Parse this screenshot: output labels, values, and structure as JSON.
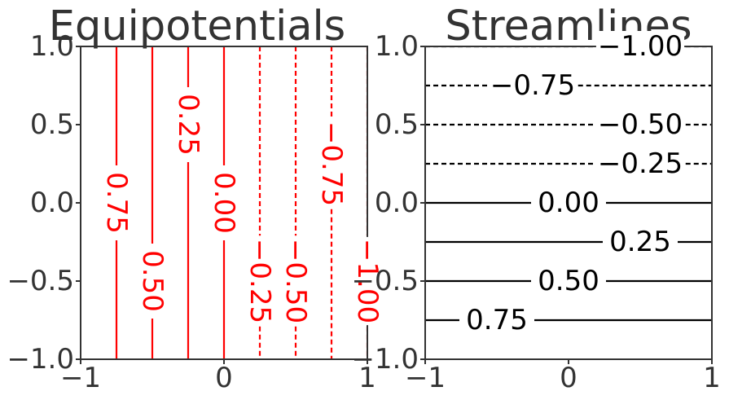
{
  "chart_data": [
    {
      "type": "contour",
      "title": "Equipotentials",
      "xlim": [
        -1,
        1
      ],
      "ylim": [
        -1,
        1
      ],
      "x_tick_labels": [
        "−1",
        "0",
        "1"
      ],
      "y_tick_labels": [
        "1.0",
        "0.5",
        "0.0",
        "−0.5",
        "−1.0"
      ],
      "line_color": "#ff0000",
      "orientation": "vertical",
      "grid": false,
      "contours": [
        {
          "level": 0.75,
          "x": -0.75,
          "style": "solid",
          "label": "0.75",
          "label_y": 0.0
        },
        {
          "level": 0.5,
          "x": -0.5,
          "style": "solid",
          "label": "0.50",
          "label_y": -0.5
        },
        {
          "level": 0.25,
          "x": -0.25,
          "style": "solid",
          "label": "0.25",
          "label_y": 0.5
        },
        {
          "level": 0.0,
          "x": 0.0,
          "style": "solid",
          "label": "0.00",
          "label_y": 0.0
        },
        {
          "level": -0.25,
          "x": 0.25,
          "style": "dashed",
          "label": "−0.25",
          "label_y": -0.5
        },
        {
          "level": -0.5,
          "x": 0.5,
          "style": "dashed",
          "label": "−0.50",
          "label_y": -0.5
        },
        {
          "level": -0.75,
          "x": 0.75,
          "style": "dashed",
          "label": "−0.75",
          "label_y": 0.25
        },
        {
          "level": -1.0,
          "x": 1.0,
          "style": "dashed",
          "label": "−1.00",
          "label_y": -0.5
        }
      ]
    },
    {
      "type": "contour",
      "title": "Streamlines",
      "xlim": [
        -1,
        1
      ],
      "ylim": [
        -1,
        1
      ],
      "x_tick_labels": [
        "−1",
        "0",
        "1"
      ],
      "y_tick_labels": [
        "1.0",
        "0.5",
        "0.0",
        "−0.5",
        "−1.0"
      ],
      "line_color": "#000000",
      "orientation": "horizontal",
      "grid": false,
      "contours": [
        {
          "level": -1.0,
          "y": 1.0,
          "style": "dashed",
          "label": "−1.00",
          "label_x": 0.5
        },
        {
          "level": -0.75,
          "y": 0.75,
          "style": "dashed",
          "label": "−0.75",
          "label_x": -0.25
        },
        {
          "level": -0.5,
          "y": 0.5,
          "style": "dashed",
          "label": "−0.50",
          "label_x": 0.5
        },
        {
          "level": -0.25,
          "y": 0.25,
          "style": "dashed",
          "label": "−0.25",
          "label_x": 0.5
        },
        {
          "level": 0.0,
          "y": 0.0,
          "style": "solid",
          "label": "0.00",
          "label_x": 0.0
        },
        {
          "level": 0.25,
          "y": -0.25,
          "style": "solid",
          "label": "0.25",
          "label_x": 0.5
        },
        {
          "level": 0.5,
          "y": -0.5,
          "style": "solid",
          "label": "0.50",
          "label_x": 0.0
        },
        {
          "level": 0.75,
          "y": -0.75,
          "style": "solid",
          "label": "0.75",
          "label_x": -0.5
        }
      ]
    }
  ]
}
